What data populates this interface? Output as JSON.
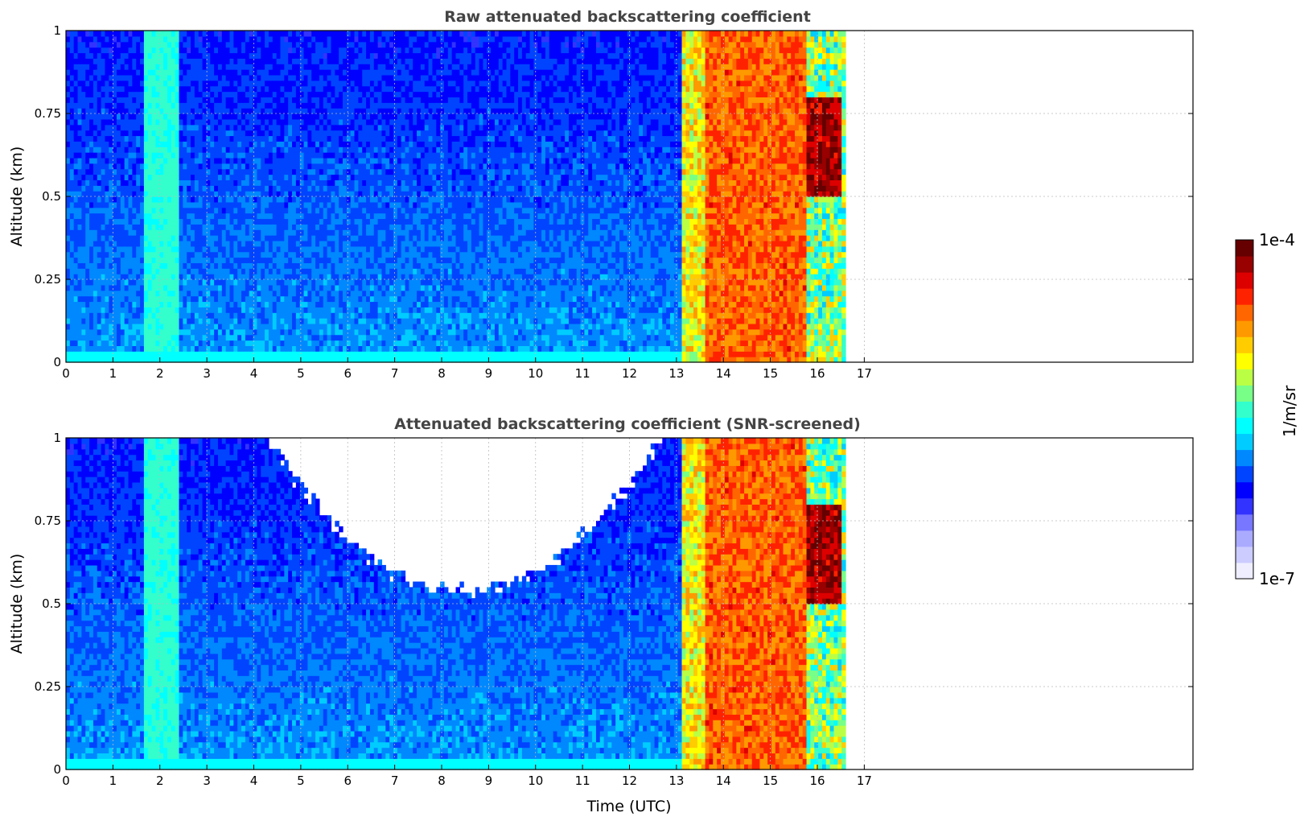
{
  "chart_data": [
    {
      "type": "heatmap",
      "title": "Raw attenuated backscattering coefficient",
      "xlabel": "",
      "ylabel": "Altitude (km)",
      "xlim": [
        0,
        24
      ],
      "ylim": [
        0,
        1
      ],
      "xticks": [
        "0",
        "1",
        "2",
        "3",
        "4",
        "5",
        "6",
        "7",
        "8",
        "9",
        "10",
        "11",
        "12",
        "13",
        "14",
        "15",
        "16",
        "17"
      ],
      "yticks": [
        "0",
        "0.25",
        "0.5",
        "0.75",
        "1"
      ],
      "grid": true,
      "colormap": "jet",
      "value_scale": "log",
      "screened": false,
      "data_end_hour": 16.6,
      "features": {
        "aerosol_layer_hours": [
          0,
          13.1
        ],
        "elevated_band_hours": [
          1.7,
          2.4
        ],
        "cloud_hours": [
          13.1,
          15.8
        ],
        "dissipating_cloud_hours": [
          15.8,
          16.6
        ],
        "cloud_top_hours": [
          15.8,
          16.6
        ],
        "cloud_top_altitude_km": [
          0.5,
          0.75
        ],
        "cloud_top_value": "1e-4"
      }
    },
    {
      "type": "heatmap",
      "title": "Attenuated backscattering coefficient (SNR-screened)",
      "xlabel": "Time (UTC)",
      "ylabel": "Altitude (km)",
      "xlim": [
        0,
        24
      ],
      "ylim": [
        0,
        1
      ],
      "xticks": [
        "0",
        "1",
        "2",
        "3",
        "4",
        "5",
        "6",
        "7",
        "8",
        "9",
        "10",
        "11",
        "12",
        "13",
        "14",
        "15",
        "16",
        "17"
      ],
      "yticks": [
        "0",
        "0.25",
        "0.5",
        "0.75",
        "1"
      ],
      "grid": true,
      "colormap": "jet",
      "value_scale": "log",
      "screened": true,
      "data_end_hour": 16.6,
      "screened_region": {
        "hours": [
          4.2,
          12.7
        ],
        "min_altitude_km_at_9h": 0.53
      }
    }
  ],
  "colorbar": {
    "label": "1/m/sr",
    "min_label": "1e-7",
    "max_label": "1e-4",
    "colors": [
      "#eeeeff",
      "#ccccff",
      "#aaaaff",
      "#7777ff",
      "#3333ff",
      "#0000ff",
      "#0044ff",
      "#0088ff",
      "#00ccff",
      "#00ffff",
      "#33ffcc",
      "#77ff88",
      "#bbff44",
      "#ffff00",
      "#ffcc00",
      "#ff9900",
      "#ff6600",
      "#ff2200",
      "#dd0000",
      "#990000",
      "#660000"
    ]
  }
}
